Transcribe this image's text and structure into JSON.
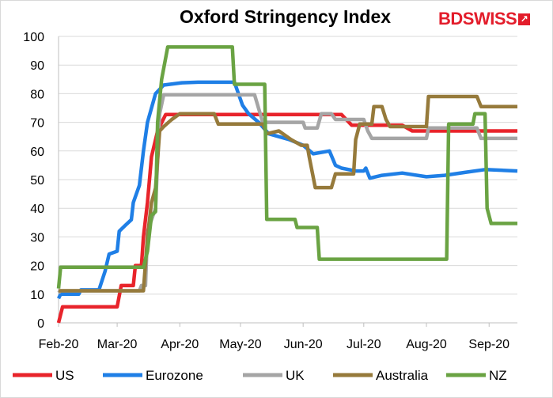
{
  "logo": {
    "brand_part1": "BD",
    "brand_part2": "SWISS",
    "mark": "↗",
    "color": "#e31d2b"
  },
  "chart_data": {
    "type": "line",
    "title": "Oxford Stringency Index",
    "xlabel": "",
    "ylabel": "",
    "ylim": [
      0,
      100
    ],
    "yticks": [
      0,
      10,
      20,
      30,
      40,
      50,
      60,
      70,
      80,
      90,
      100
    ],
    "xlim": [
      "2020-02-01",
      "2020-09-15"
    ],
    "xticks": [
      {
        "date": "2020-02-01",
        "label": "Feb-20"
      },
      {
        "date": "2020-03-01",
        "label": "Mar-20"
      },
      {
        "date": "2020-04-01",
        "label": "Apr-20"
      },
      {
        "date": "2020-05-01",
        "label": "May-20"
      },
      {
        "date": "2020-06-01",
        "label": "Jun-20"
      },
      {
        "date": "2020-07-01",
        "label": "Jul-20"
      },
      {
        "date": "2020-08-01",
        "label": "Aug-20"
      },
      {
        "date": "2020-09-01",
        "label": "Sep-20"
      }
    ],
    "grid": true,
    "legend": "bottom",
    "series": [
      {
        "name": "US",
        "color": "#e8242b",
        "points": [
          [
            "2020-02-01",
            0
          ],
          [
            "2020-02-03",
            5.6
          ],
          [
            "2020-02-29",
            5.6
          ],
          [
            "2020-03-01",
            5.6
          ],
          [
            "2020-03-03",
            13
          ],
          [
            "2020-03-09",
            13
          ],
          [
            "2020-03-10",
            20
          ],
          [
            "2020-03-13",
            20
          ],
          [
            "2020-03-14",
            30
          ],
          [
            "2020-03-16",
            42
          ],
          [
            "2020-03-18",
            58
          ],
          [
            "2020-03-21",
            67
          ],
          [
            "2020-03-25",
            72.7
          ],
          [
            "2020-06-15",
            72.7
          ],
          [
            "2020-06-20",
            72.7
          ],
          [
            "2020-06-25",
            69
          ],
          [
            "2020-07-20",
            69
          ],
          [
            "2020-07-25",
            67
          ],
          [
            "2020-09-15",
            67
          ]
        ]
      },
      {
        "name": "Eurozone",
        "color": "#1f7fe6",
        "points": [
          [
            "2020-02-01",
            8.5
          ],
          [
            "2020-02-02",
            10
          ],
          [
            "2020-02-11",
            10
          ],
          [
            "2020-02-12",
            11.5
          ],
          [
            "2020-02-21",
            11.5
          ],
          [
            "2020-02-24",
            18
          ],
          [
            "2020-02-26",
            24
          ],
          [
            "2020-03-01",
            25
          ],
          [
            "2020-03-02",
            32
          ],
          [
            "2020-03-05",
            34
          ],
          [
            "2020-03-08",
            36
          ],
          [
            "2020-03-09",
            42
          ],
          [
            "2020-03-12",
            48
          ],
          [
            "2020-03-14",
            60
          ],
          [
            "2020-03-16",
            70
          ],
          [
            "2020-03-18",
            75
          ],
          [
            "2020-03-20",
            80
          ],
          [
            "2020-03-24",
            83
          ],
          [
            "2020-04-02",
            83.8
          ],
          [
            "2020-04-10",
            84
          ],
          [
            "2020-04-28",
            84
          ],
          [
            "2020-05-02",
            76
          ],
          [
            "2020-05-05",
            73
          ],
          [
            "2020-05-10",
            70
          ],
          [
            "2020-05-15",
            66
          ],
          [
            "2020-05-25",
            64
          ],
          [
            "2020-06-01",
            62
          ],
          [
            "2020-06-06",
            59
          ],
          [
            "2020-06-14",
            60
          ],
          [
            "2020-06-17",
            55
          ],
          [
            "2020-06-20",
            54
          ],
          [
            "2020-06-27",
            53
          ],
          [
            "2020-07-01",
            53
          ],
          [
            "2020-07-02",
            54
          ],
          [
            "2020-07-04",
            50.5
          ],
          [
            "2020-07-10",
            51.5
          ],
          [
            "2020-07-20",
            52.3
          ],
          [
            "2020-08-01",
            51
          ],
          [
            "2020-08-10",
            51.5
          ],
          [
            "2020-08-20",
            52.5
          ],
          [
            "2020-08-30",
            53.5
          ],
          [
            "2020-09-15",
            53
          ]
        ]
      },
      {
        "name": "UK",
        "color": "#a5a5a5",
        "points": [
          [
            "2020-02-01",
            10.5
          ],
          [
            "2020-02-02",
            11.2
          ],
          [
            "2020-03-12",
            11.2
          ],
          [
            "2020-03-13",
            13
          ],
          [
            "2020-03-15",
            13
          ],
          [
            "2020-03-16",
            32
          ],
          [
            "2020-03-18",
            36
          ],
          [
            "2020-03-20",
            40
          ],
          [
            "2020-03-22",
            73
          ],
          [
            "2020-03-24",
            79.6
          ],
          [
            "2020-05-08",
            79.6
          ],
          [
            "2020-05-12",
            70
          ],
          [
            "2020-05-27",
            70
          ],
          [
            "2020-06-01",
            70
          ],
          [
            "2020-06-02",
            68
          ],
          [
            "2020-06-08",
            68
          ],
          [
            "2020-06-10",
            73
          ],
          [
            "2020-06-15",
            73
          ],
          [
            "2020-06-17",
            71
          ],
          [
            "2020-07-01",
            71
          ],
          [
            "2020-07-03",
            67
          ],
          [
            "2020-07-05",
            64.4
          ],
          [
            "2020-08-01",
            64.4
          ],
          [
            "2020-08-02",
            68
          ],
          [
            "2020-08-26",
            68
          ],
          [
            "2020-08-28",
            64.4
          ],
          [
            "2020-09-15",
            64.4
          ]
        ]
      },
      {
        "name": "Australia",
        "color": "#967a3b",
        "points": [
          [
            "2020-02-01",
            11.2
          ],
          [
            "2020-03-14",
            11.2
          ],
          [
            "2020-03-16",
            30
          ],
          [
            "2020-03-18",
            42
          ],
          [
            "2020-03-20",
            47
          ],
          [
            "2020-03-22",
            67
          ],
          [
            "2020-03-24",
            68.5
          ],
          [
            "2020-03-28",
            71
          ],
          [
            "2020-04-01",
            73
          ],
          [
            "2020-04-18",
            73
          ],
          [
            "2020-04-20",
            69.4
          ],
          [
            "2020-05-12",
            69.4
          ],
          [
            "2020-05-14",
            66
          ],
          [
            "2020-05-20",
            67
          ],
          [
            "2020-05-26",
            64
          ],
          [
            "2020-05-31",
            62
          ],
          [
            "2020-06-03",
            62
          ],
          [
            "2020-06-04",
            58
          ],
          [
            "2020-06-07",
            47.2
          ],
          [
            "2020-06-15",
            47.2
          ],
          [
            "2020-06-17",
            52
          ],
          [
            "2020-06-26",
            52
          ],
          [
            "2020-06-27",
            64
          ],
          [
            "2020-06-29",
            69.4
          ],
          [
            "2020-07-05",
            69.4
          ],
          [
            "2020-07-06",
            75.5
          ],
          [
            "2020-07-10",
            75.5
          ],
          [
            "2020-07-12",
            71
          ],
          [
            "2020-07-14",
            68.5
          ],
          [
            "2020-08-01",
            68.5
          ],
          [
            "2020-08-02",
            79
          ],
          [
            "2020-08-26",
            79
          ],
          [
            "2020-08-28",
            75.5
          ],
          [
            "2020-09-15",
            75.5
          ]
        ]
      },
      {
        "name": "NZ",
        "color": "#6aa343",
        "points": [
          [
            "2020-02-01",
            12
          ],
          [
            "2020-02-02",
            19.4
          ],
          [
            "2020-03-14",
            19.4
          ],
          [
            "2020-03-16",
            25
          ],
          [
            "2020-03-18",
            37.5
          ],
          [
            "2020-03-20",
            38.8
          ],
          [
            "2020-03-21",
            70
          ],
          [
            "2020-03-23",
            85
          ],
          [
            "2020-03-26",
            96.3
          ],
          [
            "2020-04-27",
            96.3
          ],
          [
            "2020-04-28",
            83.3
          ],
          [
            "2020-05-13",
            83.3
          ],
          [
            "2020-05-14",
            36.1
          ],
          [
            "2020-05-28",
            36.1
          ],
          [
            "2020-05-29",
            33.3
          ],
          [
            "2020-06-08",
            33.3
          ],
          [
            "2020-06-09",
            22.2
          ],
          [
            "2020-08-11",
            22.2
          ],
          [
            "2020-08-12",
            69.4
          ],
          [
            "2020-08-24",
            69.4
          ],
          [
            "2020-08-25",
            73
          ],
          [
            "2020-08-30",
            73
          ],
          [
            "2020-08-31",
            40
          ],
          [
            "2020-09-02",
            34.7
          ],
          [
            "2020-09-15",
            34.7
          ]
        ]
      }
    ]
  }
}
